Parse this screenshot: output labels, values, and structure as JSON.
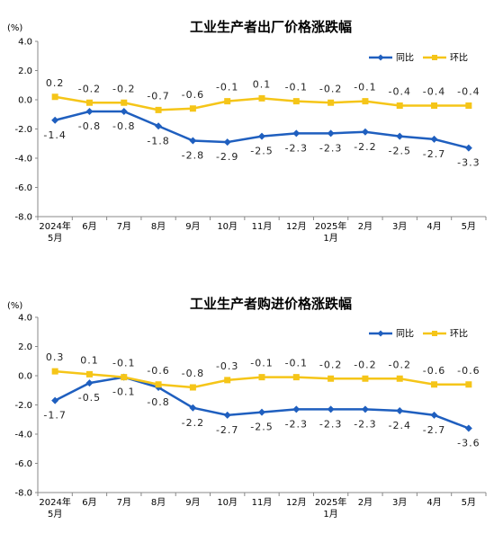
{
  "chart_data": [
    {
      "type": "line",
      "title": "工业生产者出厂价格涨跌幅",
      "unit": "(%)",
      "categories": [
        "2024年|5月",
        "6月",
        "7月",
        "8月",
        "9月",
        "10月",
        "11月",
        "12月",
        "2025年|1月",
        "2月",
        "3月",
        "4月",
        "5月"
      ],
      "ylim": [
        -8.0,
        4.0
      ],
      "yticks": [
        "4.0",
        "2.0",
        "0.0",
        "-2.0",
        "-4.0",
        "-6.0",
        "-8.0"
      ],
      "grid": false,
      "legend_position": "top-right",
      "series": [
        {
          "name": "同比",
          "color": "#1f5fbf",
          "marker": "diamond",
          "values": [
            -1.4,
            -0.8,
            -0.8,
            -1.8,
            -2.8,
            -2.9,
            -2.5,
            -2.3,
            -2.3,
            -2.2,
            -2.5,
            -2.7,
            -3.3
          ],
          "labels": [
            "-1.4",
            "-0.8",
            "-0.8",
            "-1.8",
            "-2.8",
            "-2.9",
            "-2.5",
            "-2.3",
            "-2.3",
            "-2.2",
            "-2.5",
            "-2.7",
            "-3.3"
          ]
        },
        {
          "name": "环比",
          "color": "#f5c518",
          "marker": "square",
          "values": [
            0.2,
            -0.2,
            -0.2,
            -0.7,
            -0.6,
            -0.1,
            0.1,
            -0.1,
            -0.2,
            -0.1,
            -0.4,
            -0.4,
            -0.4
          ],
          "labels": [
            "0.2",
            "-0.2",
            "-0.2",
            "-0.7",
            "-0.6",
            "-0.1",
            "0.1",
            "-0.1",
            "-0.2",
            "-0.1",
            "-0.4",
            "-0.4",
            "-0.4"
          ]
        }
      ]
    },
    {
      "type": "line",
      "title": "工业生产者购进价格涨跌幅",
      "unit": "(%)",
      "categories": [
        "2024年|5月",
        "6月",
        "7月",
        "8月",
        "9月",
        "10月",
        "11月",
        "12月",
        "2025年|1月",
        "2月",
        "3月",
        "4月",
        "5月"
      ],
      "ylim": [
        -8.0,
        4.0
      ],
      "yticks": [
        "4.0",
        "2.0",
        "0.0",
        "-2.0",
        "-4.0",
        "-6.0",
        "-8.0"
      ],
      "grid": false,
      "legend_position": "top-right",
      "series": [
        {
          "name": "同比",
          "color": "#1f5fbf",
          "marker": "diamond",
          "values": [
            -1.7,
            -0.5,
            -0.1,
            -0.8,
            -2.2,
            -2.7,
            -2.5,
            -2.3,
            -2.3,
            -2.3,
            -2.4,
            -2.7,
            -3.6
          ],
          "labels": [
            "-1.7",
            "-0.5",
            "-0.1",
            "-0.8",
            "-2.2",
            "-2.7",
            "-2.5",
            "-2.3",
            "-2.3",
            "-2.3",
            "-2.4",
            "-2.7",
            "-3.6"
          ]
        },
        {
          "name": "环比",
          "color": "#f5c518",
          "marker": "square",
          "values": [
            0.3,
            0.1,
            -0.1,
            -0.6,
            -0.8,
            -0.3,
            -0.1,
            -0.1,
            -0.2,
            -0.2,
            -0.2,
            -0.6,
            -0.6
          ],
          "labels": [
            "0.3",
            "0.1",
            "-0.1",
            "-0.6",
            "-0.8",
            "-0.3",
            "-0.1",
            "-0.1",
            "-0.2",
            "-0.2",
            "-0.2",
            "-0.6",
            "-0.6"
          ]
        }
      ]
    }
  ]
}
